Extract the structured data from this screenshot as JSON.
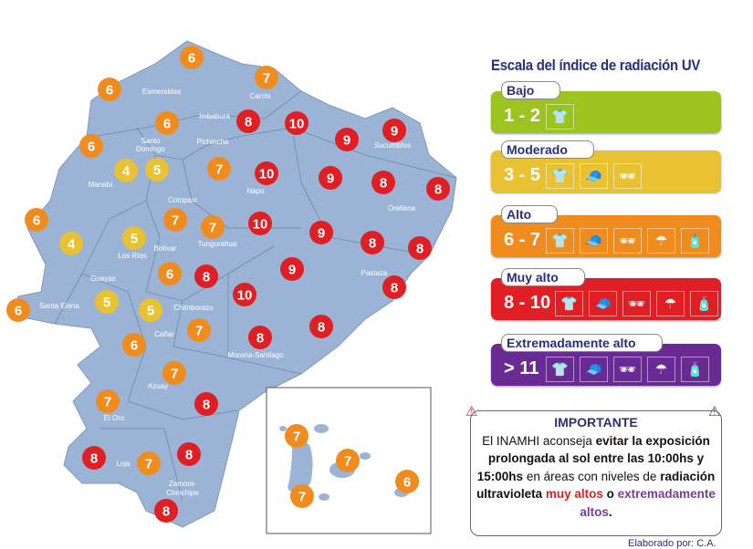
{
  "colors": {
    "map": "#9bb4d6",
    "low": "#9dc41e",
    "moderate": "#e8c233",
    "high": "#f08c1e",
    "very_high": "#e01f25",
    "extreme": "#6a2a93",
    "title": "#2b2f7a"
  },
  "legend": {
    "title": "Escala del índice de radiación UV",
    "levels": [
      {
        "label": "Bajo",
        "range": "1 - 2",
        "color": "#9dc41e",
        "icons": [
          "shirt-icon"
        ]
      },
      {
        "label": "Moderado",
        "range": "3 - 5",
        "color": "#e8c233",
        "icons": [
          "shirt-icon",
          "cap-icon",
          "sunglasses-icon"
        ]
      },
      {
        "label": "Alto",
        "range": "6 - 7",
        "color": "#f08c1e",
        "icons": [
          "shirt-icon",
          "cap-icon",
          "sunglasses-icon",
          "umbrella-icon",
          "sunscreen-icon"
        ]
      },
      {
        "label": "Muy alto",
        "range": "8 - 10",
        "color": "#e01f25",
        "icons": [
          "shirt-icon",
          "cap-icon",
          "sunglasses-icon",
          "umbrella-icon",
          "sunscreen-icon"
        ]
      },
      {
        "label": "Extremadamente alto",
        "range": "> 11",
        "color": "#6a2a93",
        "icons": [
          "shirt-icon",
          "cap-icon",
          "sunglasses-icon",
          "umbrella-icon",
          "sunscreen-icon"
        ]
      }
    ]
  },
  "note": {
    "heading": "IMPORTANTE",
    "t1": "El INAMHI aconseja ",
    "b1": "evitar la exposición prolongada al sol entre las 10:00hs y 15:00hs",
    "t2": " en áreas con niveles de ",
    "b2": "radiación ultravioleta ",
    "r": "muy altos",
    "b3": " o ",
    "p": "extremadamente altos",
    "end": "."
  },
  "credit": "Elaborado por: C.A.",
  "provinces": [
    "Esmeraldas",
    "Carchi",
    "Imbabura",
    "Santo",
    "Domingo",
    "Pichincha",
    "Sucumbíos",
    "Manabí",
    "Napo",
    "Cotopaxi",
    "Orellana",
    "Bolívar",
    "Tungurahua",
    "Los Ríos",
    "Guayas",
    "Santa Elena",
    "Chimborazo",
    "Pastaza",
    "Cañar",
    "Morona-Santiago",
    "Azuay",
    "El Oro",
    "Loja",
    "Zamora-",
    "Chinchipe"
  ],
  "uv_values": [
    6,
    7,
    6,
    6,
    8,
    10,
    9,
    9,
    6,
    4,
    5,
    7,
    10,
    9,
    8,
    8,
    6,
    7,
    7,
    10,
    9,
    4,
    5,
    8,
    8,
    6,
    8,
    9,
    8,
    6,
    5,
    5,
    10,
    7,
    8,
    8,
    6,
    7,
    7,
    8,
    8,
    7,
    8,
    8
  ],
  "galapagos_values": [
    7,
    7,
    7,
    6
  ]
}
